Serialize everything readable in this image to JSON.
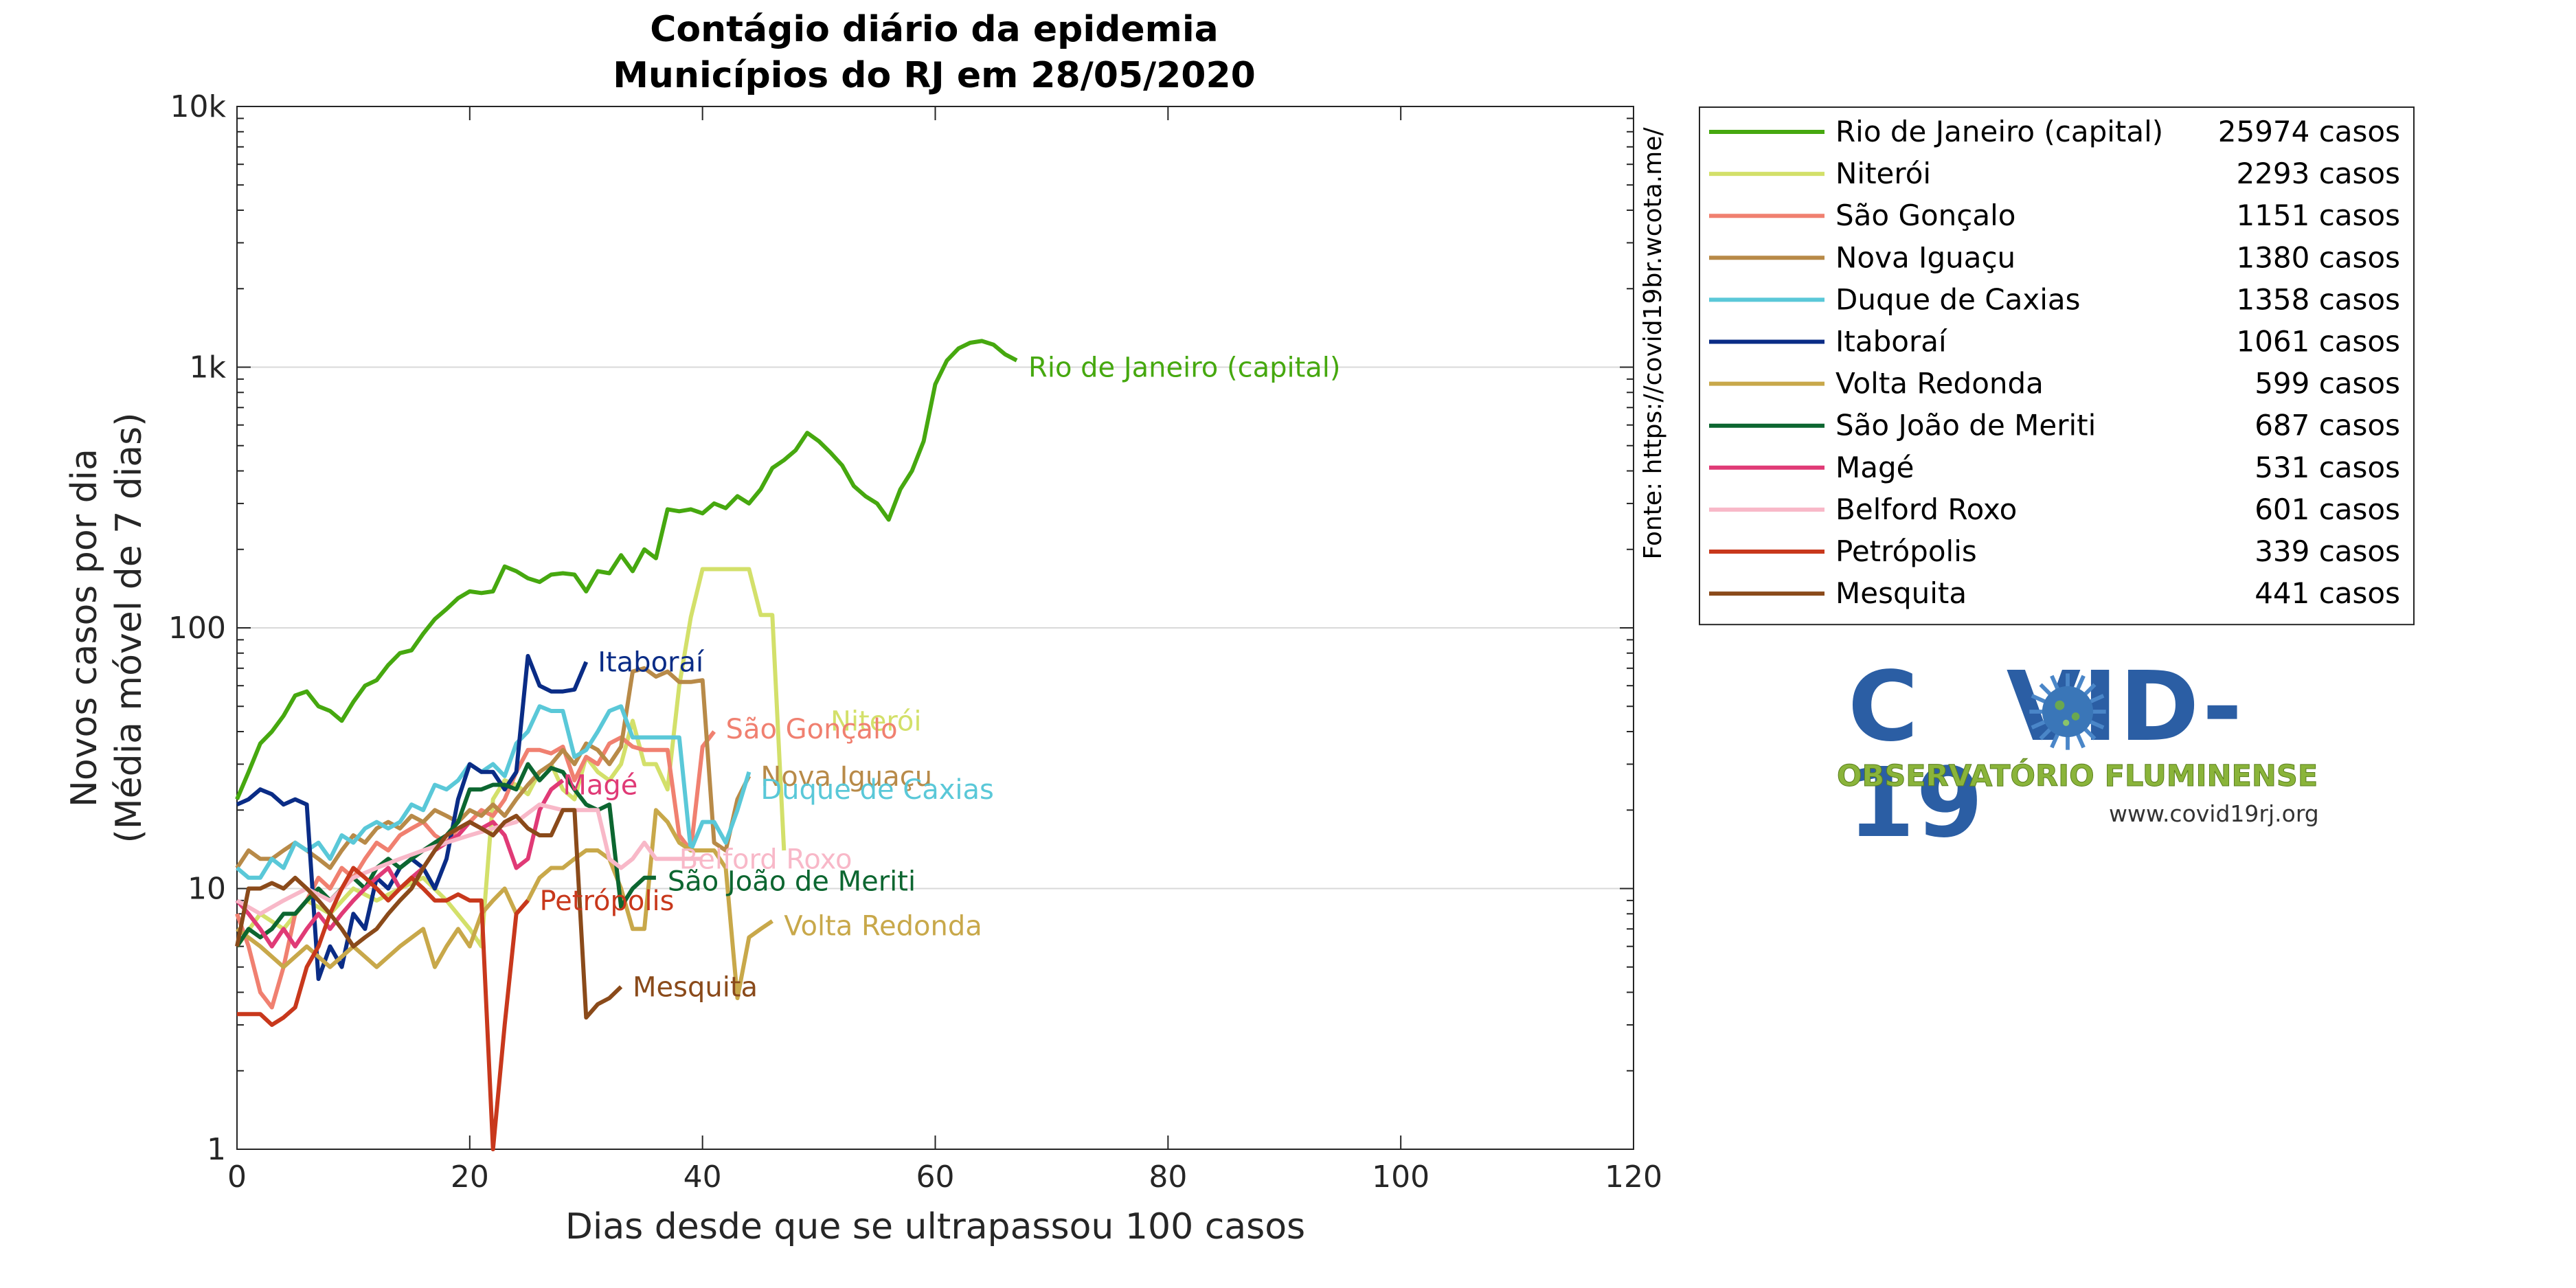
{
  "chart_data": {
    "type": "line",
    "title": "Contágio diário da epidemia",
    "subtitle": "Municípios do RJ em 28/05/2020",
    "xlabel": "Dias desde que se ultrapassou 100 casos",
    "ylabel_line1": "Novos casos por dia",
    "ylabel_line2": "(Média móvel de 7 dias)",
    "source_note": "Fonte: https://covid19br.wcota.me/",
    "xlim": [
      0,
      120
    ],
    "ylim": [
      1,
      10000
    ],
    "yscale": "log",
    "xticks": [
      0,
      20,
      40,
      60,
      80,
      100,
      120
    ],
    "xtick_labels": [
      "0",
      "20",
      "40",
      "60",
      "80",
      "100",
      "120"
    ],
    "yticks": [
      1,
      10,
      100,
      1000,
      10000
    ],
    "ytick_labels": [
      "1",
      "10",
      "100",
      "1k",
      "10k"
    ],
    "grid": "horizontal",
    "legend_position": "outside-right",
    "series": [
      {
        "name": "Rio de Janeiro (capital)",
        "cases": "25974 casos",
        "color": "#46a80f",
        "label": "Rio de Janeiro (capital)",
        "x": [
          0,
          1,
          2,
          3,
          4,
          5,
          6,
          7,
          8,
          9,
          10,
          11,
          12,
          13,
          14,
          15,
          16,
          17,
          18,
          19,
          20,
          21,
          22,
          23,
          24,
          25,
          26,
          27,
          28,
          29,
          30,
          31,
          32,
          33,
          34,
          35,
          36,
          37,
          38,
          39,
          40,
          41,
          42,
          43,
          44,
          45,
          46,
          47,
          48,
          49,
          50,
          51,
          52,
          53,
          54,
          55,
          56,
          57,
          58,
          59,
          60,
          61,
          62,
          63,
          64,
          65,
          66,
          67
        ],
        "y": [
          22,
          28,
          36,
          40,
          46,
          55,
          57,
          50,
          48,
          44,
          52,
          60,
          63,
          72,
          80,
          82,
          95,
          108,
          118,
          130,
          138,
          136,
          138,
          172,
          165,
          155,
          150,
          160,
          162,
          160,
          138,
          165,
          162,
          190,
          165,
          200,
          185,
          285,
          280,
          285,
          275,
          300,
          288,
          320,
          300,
          340,
          410,
          440,
          480,
          560,
          520,
          470,
          420,
          350,
          320,
          300,
          260,
          340,
          400,
          520,
          860,
          1060,
          1180,
          1240,
          1260,
          1220,
          1120,
          1061
        ]
      },
      {
        "name": "Niterói",
        "cases": "2293 casos",
        "color": "#d3e06a",
        "label": "Niterói",
        "x": [
          0,
          2,
          4,
          6,
          8,
          10,
          12,
          14,
          16,
          18,
          20,
          21,
          22,
          23,
          24,
          25,
          26,
          27,
          28,
          29,
          30,
          31,
          32,
          33,
          34,
          35,
          36,
          37,
          38,
          39,
          40,
          41,
          42,
          43,
          44,
          45,
          46,
          47
        ],
        "y": [
          6,
          8,
          7,
          9,
          8,
          10,
          9,
          10,
          11,
          9,
          7,
          6,
          22,
          26,
          25,
          23,
          28,
          30,
          24,
          22,
          32,
          28,
          26,
          30,
          44,
          30,
          30,
          24,
          60,
          110,
          168,
          168,
          168,
          168,
          168,
          112,
          112,
          14
        ]
      },
      {
        "name": "São Gonçalo",
        "cases": "1151 casos",
        "color": "#f08070",
        "label": "São Gonçalo",
        "x": [
          0,
          1,
          2,
          3,
          4,
          5,
          6,
          7,
          8,
          9,
          10,
          11,
          12,
          13,
          14,
          15,
          16,
          17,
          18,
          19,
          20,
          21,
          22,
          23,
          24,
          25,
          26,
          27,
          28,
          29,
          30,
          31,
          32,
          33,
          34,
          35,
          36,
          37,
          38,
          39,
          40,
          41
        ],
        "y": [
          8,
          6,
          4,
          3.5,
          5,
          8,
          9,
          11,
          10,
          12,
          11,
          13,
          15,
          14,
          16,
          17,
          18,
          16,
          15,
          17,
          18,
          20,
          19,
          22,
          28,
          34,
          34,
          33,
          35,
          26,
          32,
          30,
          36,
          38,
          35,
          34,
          34,
          34,
          16,
          14,
          35,
          40
        ]
      },
      {
        "name": "Nova Iguaçu",
        "cases": "1380 casos",
        "color": "#b88a48",
        "label": "Nova Iguaçu",
        "x": [
          0,
          1,
          2,
          3,
          4,
          5,
          6,
          7,
          8,
          9,
          10,
          11,
          12,
          13,
          14,
          15,
          16,
          17,
          18,
          19,
          20,
          21,
          22,
          23,
          24,
          25,
          26,
          27,
          28,
          29,
          30,
          31,
          32,
          33,
          34,
          35,
          36,
          37,
          38,
          39,
          40,
          41,
          42,
          43,
          44
        ],
        "y": [
          12,
          14,
          13,
          13,
          14,
          15,
          14,
          13,
          12,
          14,
          16,
          15,
          17,
          18,
          17,
          19,
          18,
          20,
          19,
          18,
          20,
          19,
          21,
          19,
          22,
          25,
          28,
          30,
          34,
          30,
          36,
          34,
          30,
          35,
          68,
          70,
          65,
          68,
          62,
          62,
          63,
          15,
          14,
          22,
          27
        ]
      },
      {
        "name": "Duque de Caxias",
        "cases": "1358 casos",
        "color": "#5ac8d8",
        "label": "Duque de Caxias",
        "x": [
          0,
          1,
          2,
          3,
          4,
          5,
          6,
          7,
          8,
          9,
          10,
          11,
          12,
          13,
          14,
          15,
          16,
          17,
          18,
          19,
          20,
          21,
          22,
          23,
          24,
          25,
          26,
          27,
          28,
          29,
          30,
          31,
          32,
          33,
          34,
          35,
          36,
          37,
          38,
          39,
          40,
          41,
          42,
          43,
          44
        ],
        "y": [
          12,
          11,
          11,
          13,
          12,
          15,
          14,
          15,
          13,
          16,
          15,
          17,
          18,
          17,
          18,
          21,
          20,
          25,
          24,
          26,
          30,
          28,
          30,
          27,
          36,
          40,
          50,
          48,
          48,
          32,
          34,
          40,
          48,
          50,
          38,
          38,
          38,
          38,
          38,
          14,
          18,
          18,
          15,
          20,
          28
        ]
      },
      {
        "name": "Itaboraí",
        "cases": "1061 casos",
        "color": "#0a2c86",
        "label": "Itaboraí",
        "x": [
          0,
          1,
          2,
          3,
          4,
          5,
          6,
          7,
          8,
          9,
          10,
          11,
          12,
          13,
          14,
          15,
          16,
          17,
          18,
          19,
          20,
          21,
          22,
          23,
          24,
          25,
          26,
          27,
          28,
          29,
          30
        ],
        "y": [
          21,
          22,
          24,
          23,
          21,
          22,
          21,
          4.5,
          6,
          5,
          8,
          7,
          11,
          10,
          12,
          13,
          12,
          10,
          13,
          22,
          30,
          28,
          28,
          24,
          28,
          78,
          60,
          57,
          57,
          58,
          74
        ]
      },
      {
        "name": "Volta Redonda",
        "cases": "599 casos",
        "color": "#c8a84a",
        "label": "Volta Redonda",
        "x": [
          0,
          2,
          4,
          6,
          8,
          10,
          12,
          14,
          16,
          17,
          18,
          19,
          20,
          21,
          22,
          23,
          24,
          25,
          26,
          27,
          28,
          29,
          30,
          31,
          32,
          33,
          34,
          35,
          36,
          37,
          38,
          39,
          40,
          41,
          42,
          43,
          44,
          45,
          46
        ],
        "y": [
          7,
          6,
          5,
          6,
          5,
          6,
          5,
          6,
          7,
          5,
          6,
          7,
          6,
          8,
          9,
          10,
          8,
          9,
          11,
          12,
          12,
          13,
          14,
          14,
          13,
          10,
          7,
          7,
          20,
          18,
          15,
          14,
          14,
          14,
          12,
          3.8,
          6.5,
          7,
          7.5
        ]
      },
      {
        "name": "São João de Meriti",
        "cases": "687 casos",
        "color": "#0c6630",
        "label": "São João de Meriti",
        "x": [
          0,
          1,
          2,
          3,
          4,
          5,
          6,
          7,
          8,
          9,
          10,
          11,
          12,
          13,
          14,
          15,
          16,
          17,
          18,
          19,
          20,
          21,
          22,
          23,
          24,
          25,
          26,
          27,
          28,
          29,
          30,
          31,
          32,
          33,
          34,
          35,
          36
        ],
        "y": [
          6,
          7,
          6.5,
          7,
          8,
          8,
          9,
          10,
          9,
          10,
          11,
          10,
          12,
          13,
          12,
          13,
          14,
          15,
          16,
          18,
          24,
          24,
          25,
          25,
          24,
          30,
          26,
          29,
          28,
          24,
          21,
          20,
          21,
          8.5,
          10,
          11,
          11
        ]
      },
      {
        "name": "Magé",
        "cases": "531 casos",
        "color": "#e03a76",
        "label": "Magé",
        "x": [
          0,
          1,
          2,
          3,
          4,
          5,
          6,
          7,
          8,
          9,
          10,
          11,
          12,
          13,
          14,
          15,
          16,
          17,
          18,
          19,
          20,
          21,
          22,
          23,
          24,
          25,
          26,
          27,
          28
        ],
        "y": [
          9,
          8,
          7,
          6,
          7,
          6,
          7,
          8,
          7,
          8,
          9,
          10,
          11,
          12,
          10,
          11,
          12,
          14,
          15,
          16,
          18,
          17,
          18,
          16,
          12,
          13,
          20,
          24,
          26
        ]
      },
      {
        "name": "Belford Roxo",
        "cases": "601 casos",
        "color": "#f8b8c8",
        "label": "Belford Roxo",
        "x": [
          0,
          2,
          4,
          6,
          8,
          10,
          12,
          14,
          16,
          18,
          20,
          22,
          24,
          26,
          28,
          30,
          31,
          32,
          33,
          34,
          35,
          36,
          37,
          38,
          39,
          40
        ],
        "y": [
          9,
          8,
          9,
          10,
          9,
          11,
          12,
          13,
          14,
          15,
          16,
          17,
          18,
          21,
          20,
          20,
          20,
          13,
          12,
          13,
          15,
          13,
          13,
          13,
          13,
          13
        ]
      },
      {
        "name": "Petrópolis",
        "cases": "339 casos",
        "color": "#c8381c",
        "label": "Petrópolis",
        "x": [
          0,
          1,
          2,
          3,
          4,
          5,
          6,
          7,
          8,
          9,
          10,
          11,
          12,
          13,
          14,
          15,
          16,
          17,
          18,
          19,
          20,
          21,
          22,
          23,
          24,
          25
        ],
        "y": [
          3.3,
          3.3,
          3.3,
          3.0,
          3.2,
          3.5,
          5,
          6,
          8,
          10,
          12,
          11,
          10,
          9,
          10,
          11,
          10,
          9,
          9,
          9.5,
          9,
          9,
          1,
          3,
          8,
          9
        ]
      },
      {
        "name": "Mesquita",
        "cases": "441 casos",
        "color": "#8a4a1a",
        "label": "Mesquita",
        "x": [
          0,
          1,
          2,
          3,
          4,
          5,
          6,
          7,
          8,
          9,
          10,
          11,
          12,
          13,
          14,
          15,
          16,
          17,
          18,
          19,
          20,
          21,
          22,
          23,
          24,
          25,
          26,
          27,
          28,
          29,
          30,
          31,
          32,
          33
        ],
        "y": [
          6,
          10,
          10,
          10.5,
          10,
          11,
          10,
          9,
          8,
          7,
          6,
          6.5,
          7,
          8,
          9,
          10,
          12,
          14,
          16,
          17,
          18,
          17,
          16,
          18,
          19,
          17,
          16,
          16,
          20,
          20,
          3.2,
          3.6,
          3.8,
          4.2
        ]
      }
    ],
    "series_labels": [
      {
        "series": 0,
        "text": "Rio de Janeiro (capital)",
        "color": "#46a80f",
        "x": 68,
        "y": 1000
      },
      {
        "series": 5,
        "text": "Itaboraí",
        "color": "#0a2c86",
        "x": 31,
        "y": 74
      },
      {
        "series": 1,
        "text": "Niterói",
        "color": "#d3e06a",
        "x": 51,
        "y": 44
      },
      {
        "series": 2,
        "text": "São Gonçalo",
        "color": "#f08070",
        "x": 42,
        "y": 41
      },
      {
        "series": 3,
        "text": "Nova Iguaçu",
        "color": "#b88a48",
        "x": 45,
        "y": 27
      },
      {
        "series": 4,
        "text": "Duque de Caxias",
        "color": "#5ac8d8",
        "x": 45,
        "y": 24
      },
      {
        "series": 8,
        "text": "Magé",
        "color": "#e03a76",
        "x": 28,
        "y": 25
      },
      {
        "series": 9,
        "text": "Belford Roxo",
        "color": "#f8b8c8",
        "x": 38,
        "y": 13
      },
      {
        "series": 7,
        "text": "São João de Meriti",
        "color": "#0c6630",
        "x": 37,
        "y": 10.7
      },
      {
        "series": 10,
        "text": "Petrópolis",
        "color": "#c8381c",
        "x": 26,
        "y": 9
      },
      {
        "series": 6,
        "text": "Volta Redonda",
        "color": "#c8a84a",
        "x": 47,
        "y": 7.2
      },
      {
        "series": 11,
        "text": "Mesquita",
        "color": "#8a4a1a",
        "x": 34,
        "y": 4.2
      }
    ]
  },
  "logo": {
    "main_text_left": "C",
    "main_text_right": "VID-19",
    "subtitle": "OBSERVATÓRIO FLUMINENSE",
    "url": "www.covid19rj.org"
  }
}
